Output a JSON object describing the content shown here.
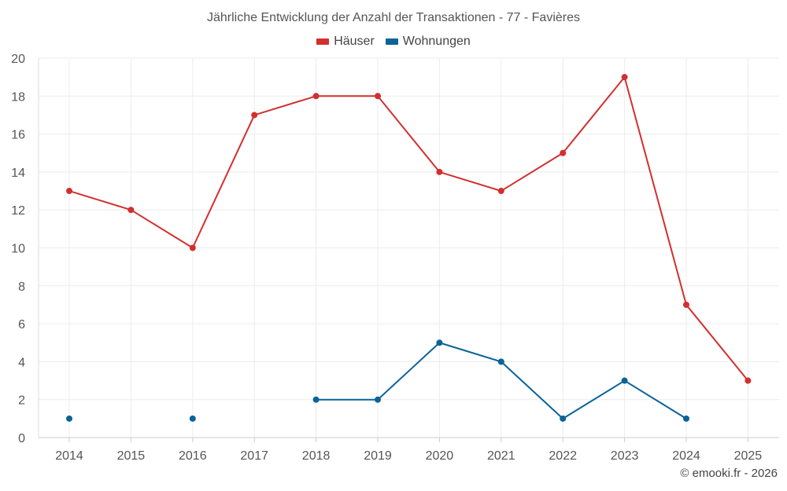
{
  "chart_data": {
    "type": "line",
    "title": "Jährliche Entwicklung der Anzahl der Transaktionen - 77 - Favières",
    "categories": [
      "2014",
      "2015",
      "2016",
      "2017",
      "2018",
      "2019",
      "2020",
      "2021",
      "2022",
      "2023",
      "2024",
      "2025"
    ],
    "series": [
      {
        "name": "Häuser",
        "color": "#d32f2f",
        "values": [
          13,
          12,
          10,
          17,
          18,
          18,
          14,
          13,
          15,
          19,
          7,
          3
        ]
      },
      {
        "name": "Wohnungen",
        "color": "#0a6399",
        "values": [
          1,
          null,
          1,
          null,
          2,
          2,
          5,
          4,
          1,
          3,
          1,
          null
        ]
      }
    ],
    "ylim": [
      0,
      20
    ],
    "yticks": [
      0,
      2,
      4,
      6,
      8,
      10,
      12,
      14,
      16,
      18,
      20
    ],
    "grid": true,
    "legend_position": "top-center"
  },
  "credit": "© emooki.fr - 2026"
}
